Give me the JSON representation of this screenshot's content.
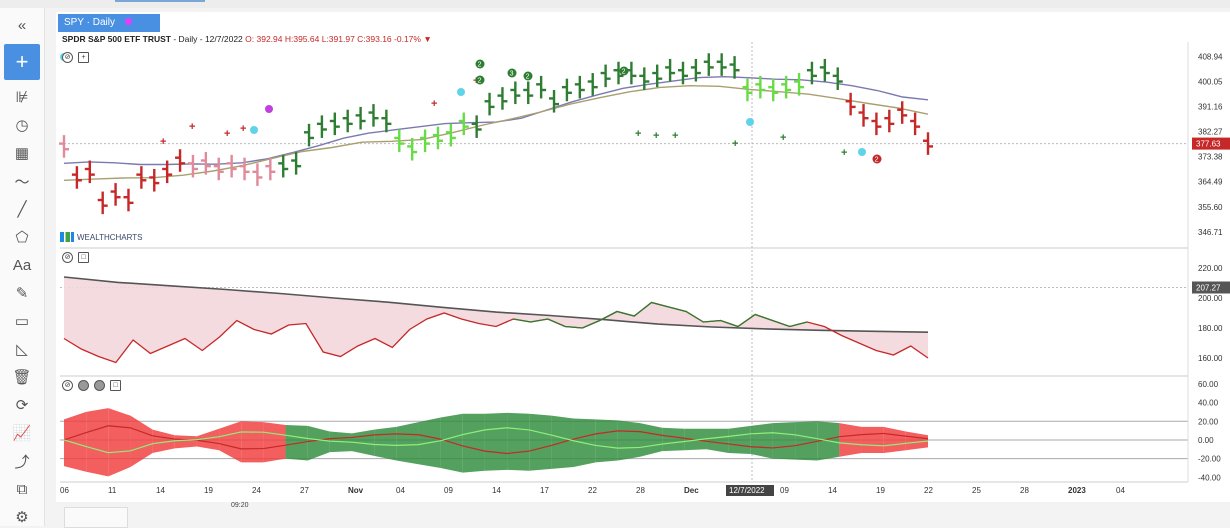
{
  "header": {
    "symbol_tab": "SPY · Daily",
    "info_symbol": "SPDR S&P 500 ETF TRUST",
    "info_rest": " - Daily - 12/7/2022",
    "info_ohlc": "O: 392.94 H:395.64 L:391.97 C:393.16 -0.17%",
    "info_marker": "▼",
    "watermark": "WEALTHCHARTS",
    "bottom_clock": "09:20"
  },
  "toolbar": {
    "items": [
      {
        "name": "collapse-icon",
        "glyph": "«"
      },
      {
        "name": "add-button",
        "glyph": "+"
      },
      {
        "name": "indicators-icon",
        "glyph": "⊯"
      },
      {
        "name": "clock-icon",
        "glyph": "◷"
      },
      {
        "name": "calendar-icon",
        "glyph": "▦"
      },
      {
        "name": "trend-icon",
        "glyph": "〜"
      },
      {
        "name": "line-tool-icon",
        "glyph": "╱"
      },
      {
        "name": "shapes-icon",
        "glyph": "⬠"
      },
      {
        "name": "text-tool-icon",
        "glyph": "Aa"
      },
      {
        "name": "pencil-icon",
        "glyph": "✎"
      },
      {
        "name": "ruler-icon",
        "glyph": "▭"
      },
      {
        "name": "angle-icon",
        "glyph": "◺"
      },
      {
        "name": "trash-icon",
        "glyph": "🗑"
      },
      {
        "name": "refresh-icon",
        "glyph": "⟳"
      },
      {
        "name": "chart-icon",
        "glyph": "📈"
      },
      {
        "name": "path-icon",
        "glyph": "⤴"
      },
      {
        "name": "copy-icon",
        "glyph": "⧉"
      },
      {
        "name": "settings-icon",
        "glyph": "⚙"
      }
    ]
  },
  "colors": {
    "up": "#2e7d32",
    "up_light": "#66dd44",
    "down": "#c62828",
    "down_light": "#e08a9a",
    "ma_fast": "#7a7ab0",
    "ma_slow": "#a9a070",
    "fill_pink": "#f3d7dc",
    "fill_lav": "#e8dcea",
    "ribbon_green": "#2e8b3a",
    "ribbon_red": "#f03c3c",
    "current": "#c62828",
    "ind2_tag": "#555555"
  },
  "chart_data": [
    {
      "type": "ohlc",
      "title": "SPY - Daily",
      "ylim": [
        341,
        414
      ],
      "y_ticks": [
        "408.94",
        "400.05",
        "391.16",
        "382.27",
        "373.38",
        "364.49",
        "355.60",
        "346.71"
      ],
      "current_price": "377.63",
      "x_ticks": [
        "06",
        "11",
        "14",
        "19",
        "24",
        "27",
        "Nov",
        "04",
        "09",
        "14",
        "17",
        "22",
        "28",
        "Dec",
        "12/7/2022",
        "09",
        "14",
        "19",
        "22",
        "25",
        "28",
        "2023",
        "04"
      ],
      "price_x": [
        6,
        11,
        14,
        19,
        24,
        27,
        31,
        4,
        9,
        14,
        17,
        22,
        28,
        1,
        7,
        9,
        14,
        19,
        22
      ],
      "date_labels_x": [
        "Oct 6",
        "Oct 11",
        "Oct 14",
        "Oct 19",
        "Oct 24",
        "Oct 27",
        "Oct 31",
        "Nov 4",
        "Nov 9",
        "Nov 14",
        "Nov 17",
        "Nov 22",
        "Nov 28",
        "Dec 1",
        "Dec 7",
        "Dec 9",
        "Dec 14",
        "Dec 19",
        "Dec 22"
      ],
      "closes": [
        377,
        366,
        368,
        357,
        360,
        358,
        366,
        365,
        368,
        372,
        370,
        371,
        369,
        370,
        369,
        367,
        369,
        370,
        371,
        381,
        384,
        385,
        386,
        387,
        388,
        386,
        379,
        376,
        379,
        380,
        381,
        385,
        384,
        392,
        394,
        396,
        396,
        398,
        393,
        397,
        398,
        399,
        402,
        403,
        403,
        401,
        402,
        404,
        403,
        404,
        406,
        406,
        405,
        397,
        398,
        397,
        398,
        399,
        403,
        404,
        401,
        392,
        388,
        385,
        386,
        389,
        385,
        378
      ],
      "candle_colors": [
        "down_light",
        "down",
        "down",
        "down",
        "down",
        "down",
        "down",
        "down",
        "down",
        "down",
        "down_light",
        "down_light",
        "down_light",
        "down_light",
        "down_light",
        "down_light",
        "down_light",
        "up",
        "up",
        "up",
        "up",
        "up",
        "up",
        "up",
        "up",
        "up",
        "up_light",
        "up_light",
        "up_light",
        "up_light",
        "up_light",
        "up_light",
        "up",
        "up",
        "up",
        "up",
        "up",
        "up",
        "up",
        "up",
        "up",
        "up",
        "up",
        "up",
        "up",
        "up",
        "up",
        "up",
        "up",
        "up",
        "up",
        "up",
        "up",
        "up_light",
        "up_light",
        "up_light",
        "up_light",
        "up_light",
        "up",
        "up",
        "up",
        "down",
        "down",
        "down",
        "down",
        "down",
        "down",
        "down"
      ],
      "ma_fast": [
        371,
        371.5,
        371.2,
        370.6,
        370.6,
        370.8,
        370.7,
        371.2,
        372.6,
        374.8,
        377.2,
        379.9,
        381.7,
        382.9,
        384.0,
        385.1,
        385.4,
        385.6,
        387.0,
        389.9,
        392.8,
        395.3,
        397.6,
        399.0,
        400.2,
        401.4,
        401.7,
        401.3,
        400.8,
        400.6,
        399.8,
        398.5,
        396.8,
        394.5,
        393.5
      ],
      "ma_slow": [
        365,
        365.4,
        365.8,
        365.9,
        366.8,
        368.3,
        370.2,
        372.8,
        375.2,
        376.6,
        378.5,
        378.8,
        379.4,
        381.8,
        384.4,
        386.7,
        389.2,
        392.0,
        394.3,
        396.4,
        397.9,
        398.5,
        398.3,
        397.2,
        396.4,
        395.5,
        393.9,
        392.2,
        390.6,
        388.4
      ],
      "annotations": [
        "2",
        "3",
        "2",
        "2",
        "2",
        "2"
      ]
    },
    {
      "type": "line",
      "ylim": [
        148,
        228
      ],
      "y_ticks": [
        "220.00",
        "200.00",
        "180.00",
        "160.00"
      ],
      "current_value": "207.27",
      "series": [
        {
          "values": [
            173,
            166,
            161,
            157,
            172,
            163,
            168,
            173,
            165,
            174,
            185,
            179,
            176,
            182,
            183,
            164,
            161,
            168,
            173,
            167,
            179,
            186,
            190,
            186,
            183,
            181,
            186,
            184,
            186,
            181,
            180,
            185,
            191,
            188,
            197,
            194,
            191,
            184,
            185,
            181,
            189,
            185,
            181,
            184,
            181,
            175,
            170,
            165,
            162,
            168,
            160
          ]
        },
        {
          "values": [
            214,
            210.4,
            208.1,
            205.7,
            203.0,
            200.0,
            197.2,
            193.8,
            190.6,
            188.3,
            185.6,
            182.6,
            180.7,
            179.4,
            178.5,
            177.8,
            177.2
          ]
        }
      ]
    },
    {
      "type": "area",
      "ylim": [
        -45,
        62
      ],
      "y_ticks": [
        "60.00",
        "40.00",
        "20.00",
        "0.00",
        "-20.00",
        "-40.00"
      ],
      "series": [
        {
          "values": [
            22,
            30,
            34,
            26,
            11,
            5,
            4,
            12,
            20,
            19,
            16,
            15,
            9,
            7,
            11,
            14,
            19,
            24,
            28,
            28,
            29,
            28,
            26,
            23,
            22,
            21,
            18,
            13,
            12,
            12,
            12,
            15,
            18,
            19,
            20,
            18,
            14,
            14,
            9,
            5
          ]
        },
        {
          "values": [
            -28,
            -34,
            -39,
            -29,
            -14,
            -9,
            -7,
            -11,
            -24,
            -24,
            -20,
            -22,
            -13,
            -12,
            -17,
            -22,
            -26,
            -30,
            -35,
            -33,
            -32,
            -33,
            -31,
            -29,
            -24,
            -22,
            -18,
            -12,
            -11,
            -10,
            -14,
            -15,
            -20,
            -21,
            -22,
            -18,
            -14,
            -14,
            -11,
            -8
          ]
        }
      ]
    }
  ]
}
